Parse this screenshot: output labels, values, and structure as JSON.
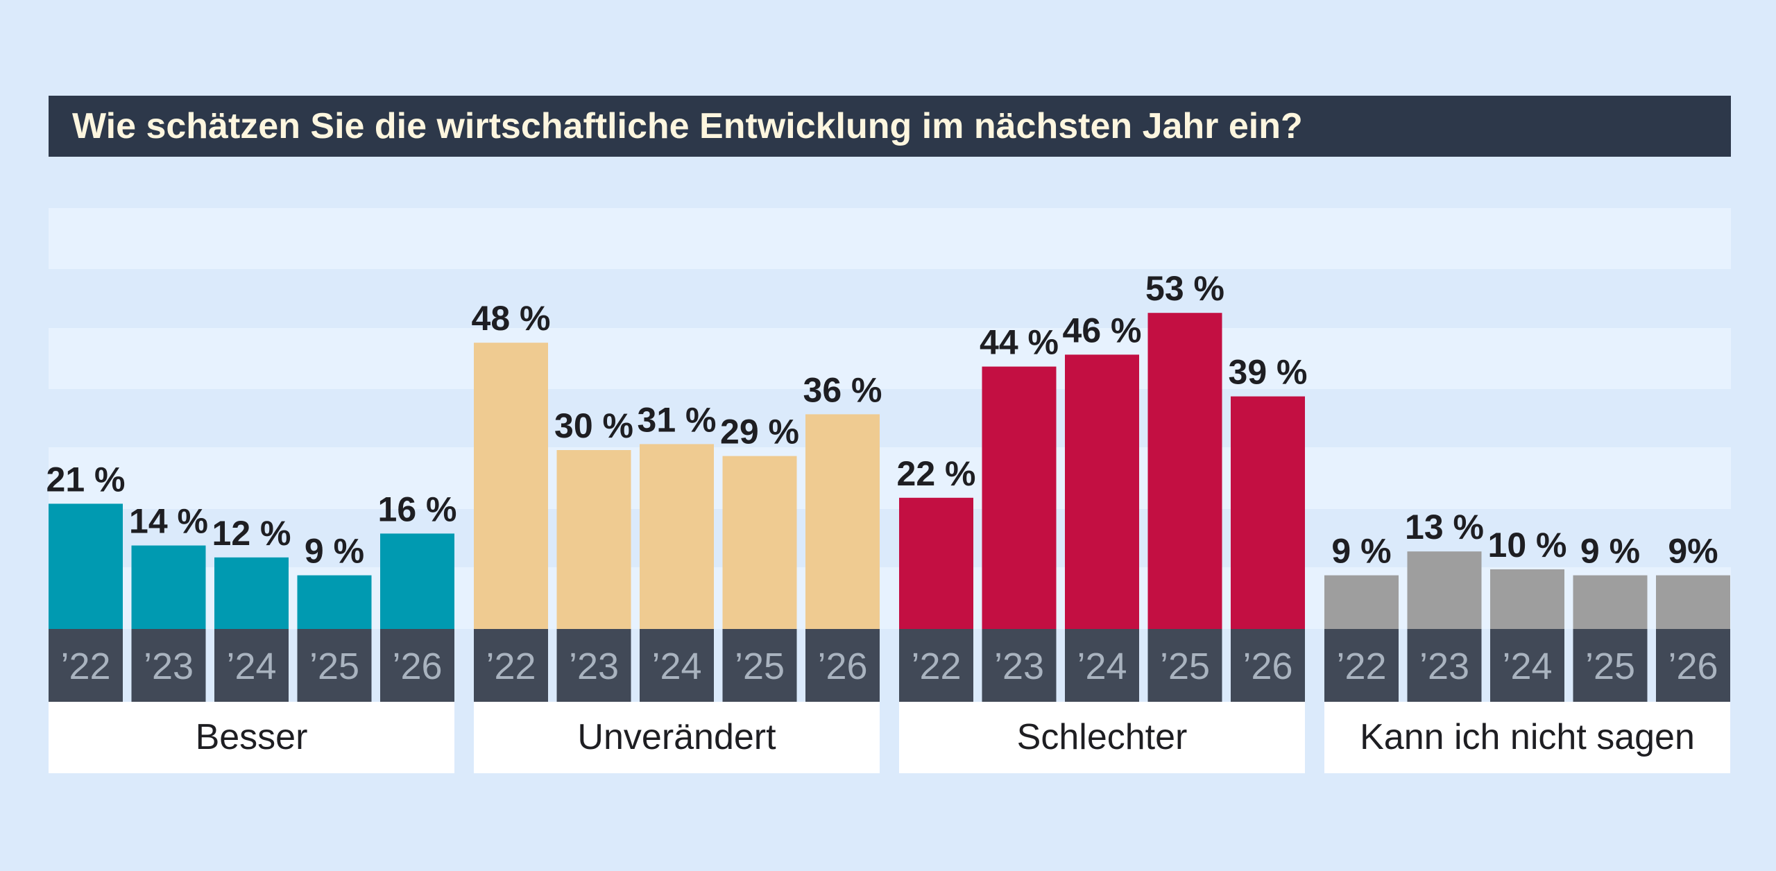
{
  "chart_data": {
    "type": "bar",
    "title": "Wie schätzen Sie die wirtschaftliche Entwicklung im nächsten Jahr ein?",
    "ylim": [
      0,
      60
    ],
    "year_labels": [
      "’22",
      "’23",
      "’24",
      "’25",
      "’26"
    ],
    "groups": [
      {
        "name": "Besser",
        "color": "#009ab1",
        "values": [
          21,
          14,
          12,
          9,
          16
        ],
        "labels": [
          "21 %",
          "14 %",
          "12 %",
          "9 %",
          "16 %"
        ]
      },
      {
        "name": "Unverändert",
        "color": "#efcb91",
        "values": [
          48,
          30,
          31,
          29,
          36
        ],
        "labels": [
          "48 %",
          "30 %",
          "31 %",
          "29 %",
          "36 %"
        ]
      },
      {
        "name": "Schlechter",
        "color": "#c30f42",
        "values": [
          22,
          44,
          46,
          53,
          39
        ],
        "labels": [
          "22 %",
          "44 %",
          "46 %",
          "53 %",
          "39 %"
        ]
      },
      {
        "name": "Kann ich nicht sagen",
        "color": "#9e9e9e",
        "values": [
          9,
          13,
          10,
          9,
          9
        ],
        "labels": [
          "9 %",
          "13 %",
          "10 %",
          "9 %",
          "9%"
        ]
      }
    ],
    "colors": {
      "year_box": "#414957",
      "category_box": "#ffffff"
    }
  }
}
